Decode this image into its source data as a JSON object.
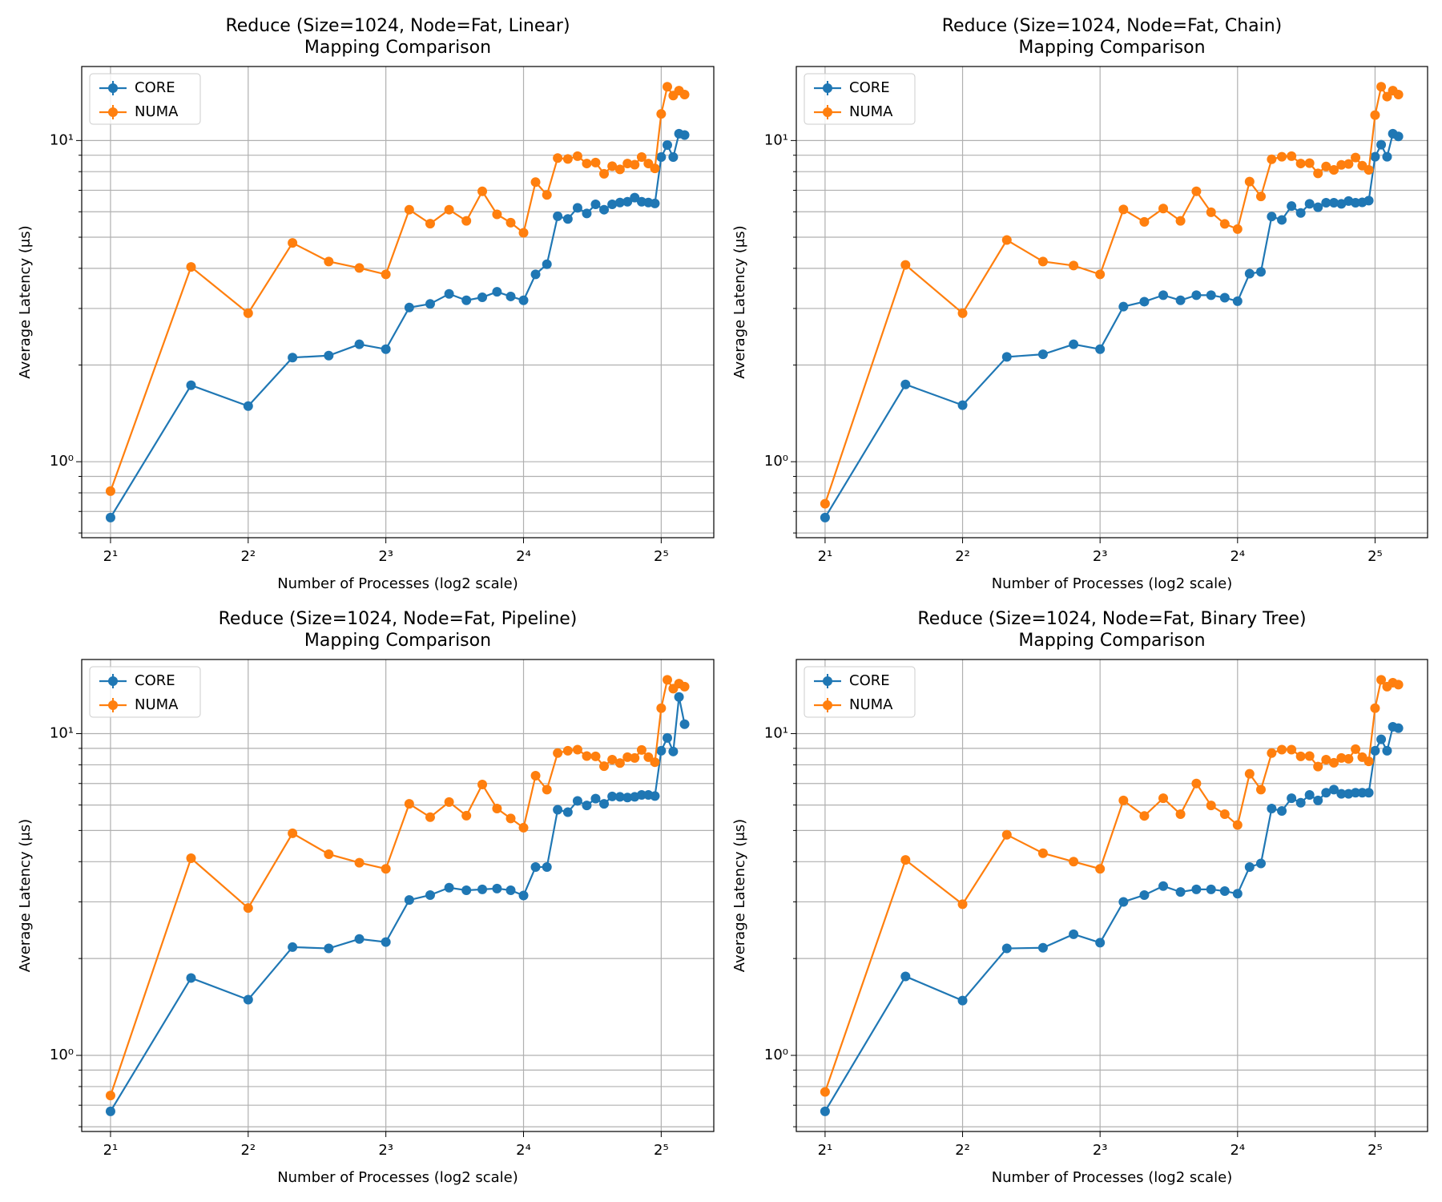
{
  "chart_data": [
    {
      "type": "line",
      "title": "Reduce (Size=1024, Node=Fat, Linear)",
      "subtitle": "Mapping Comparison",
      "x_label": "Number of Processes (log2 scale)",
      "y_label": "Average Latency (μs)",
      "x": [
        2,
        3,
        4,
        5,
        6,
        7,
        8,
        9,
        10,
        11,
        12,
        13,
        14,
        15,
        16,
        17,
        18,
        19,
        20,
        21,
        22,
        23,
        24,
        25,
        26,
        27,
        28,
        29,
        30,
        31,
        32,
        33,
        34,
        35,
        36
      ],
      "series": [
        {
          "name": "CORE",
          "color": "#1f77b4",
          "values": [
            0.67,
            1.73,
            1.49,
            2.11,
            2.14,
            2.32,
            2.24,
            3.02,
            3.1,
            3.33,
            3.18,
            3.25,
            3.38,
            3.27,
            3.18,
            3.83,
            4.12,
            5.81,
            5.7,
            6.17,
            5.93,
            6.33,
            6.09,
            6.33,
            6.41,
            6.45,
            6.64,
            6.45,
            6.41,
            6.37,
            8.88,
            9.68,
            8.88,
            10.5,
            10.4
          ]
        },
        {
          "name": "NUMA",
          "color": "#ff7f0e",
          "values": [
            0.81,
            4.04,
            2.9,
            4.8,
            4.2,
            4.01,
            3.83,
            6.09,
            5.51,
            6.09,
            5.62,
            6.95,
            5.89,
            5.55,
            5.16,
            7.42,
            6.77,
            8.82,
            8.76,
            8.94,
            8.48,
            8.54,
            7.88,
            8.32,
            8.13,
            8.48,
            8.41,
            8.88,
            8.48,
            8.19,
            12.1,
            14.7,
            13.8,
            14.3,
            13.9
          ]
        }
      ],
      "xscale": "log2",
      "yscale": "log10",
      "xlim": [
        1.73,
        41.7
      ],
      "ylim": [
        0.58,
        17
      ],
      "xticks": [
        {
          "value": 2,
          "label": "2¹"
        },
        {
          "value": 4,
          "label": "2²"
        },
        {
          "value": 8,
          "label": "2³"
        },
        {
          "value": 16,
          "label": "2⁴"
        },
        {
          "value": 32,
          "label": "2⁵"
        }
      ],
      "yticks": [
        {
          "value": 1,
          "label": "10⁰"
        },
        {
          "value": 10,
          "label": "10¹"
        }
      ],
      "yminorticks": [
        0.6,
        0.7,
        0.8,
        0.9,
        2,
        3,
        4,
        5,
        6,
        7,
        8,
        9
      ],
      "grid": true,
      "legend": "upper left"
    },
    {
      "type": "line",
      "title": "Reduce (Size=1024, Node=Fat, Chain)",
      "subtitle": "Mapping Comparison",
      "x_label": "Number of Processes (log2 scale)",
      "y_label": "Average Latency (μs)",
      "x": [
        2,
        3,
        4,
        5,
        6,
        7,
        8,
        9,
        10,
        11,
        12,
        13,
        14,
        15,
        16,
        17,
        18,
        19,
        20,
        21,
        22,
        23,
        24,
        25,
        26,
        27,
        28,
        29,
        30,
        31,
        32,
        33,
        34,
        35,
        36
      ],
      "series": [
        {
          "name": "CORE",
          "color": "#1f77b4",
          "values": [
            0.67,
            1.74,
            1.5,
            2.12,
            2.16,
            2.32,
            2.24,
            3.04,
            3.15,
            3.3,
            3.18,
            3.3,
            3.3,
            3.24,
            3.16,
            3.85,
            3.9,
            5.8,
            5.66,
            6.25,
            5.95,
            6.35,
            6.2,
            6.4,
            6.4,
            6.35,
            6.48,
            6.4,
            6.42,
            6.5,
            8.9,
            9.7,
            8.9,
            10.5,
            10.3
          ]
        },
        {
          "name": "NUMA",
          "color": "#ff7f0e",
          "values": [
            0.74,
            4.1,
            2.9,
            4.9,
            4.2,
            4.08,
            3.83,
            6.1,
            5.58,
            6.14,
            5.62,
            6.95,
            5.98,
            5.5,
            5.3,
            7.45,
            6.7,
            8.74,
            8.9,
            8.94,
            8.48,
            8.5,
            7.9,
            8.3,
            8.1,
            8.4,
            8.45,
            8.85,
            8.35,
            8.1,
            12.0,
            14.7,
            13.7,
            14.3,
            13.9
          ]
        }
      ],
      "xscale": "log2",
      "yscale": "log10",
      "xlim": [
        1.73,
        41.7
      ],
      "ylim": [
        0.58,
        17
      ],
      "xticks": [
        {
          "value": 2,
          "label": "2¹"
        },
        {
          "value": 4,
          "label": "2²"
        },
        {
          "value": 8,
          "label": "2³"
        },
        {
          "value": 16,
          "label": "2⁴"
        },
        {
          "value": 32,
          "label": "2⁵"
        }
      ],
      "yticks": [
        {
          "value": 1,
          "label": "10⁰"
        },
        {
          "value": 10,
          "label": "10¹"
        }
      ],
      "yminorticks": [
        0.6,
        0.7,
        0.8,
        0.9,
        2,
        3,
        4,
        5,
        6,
        7,
        8,
        9
      ],
      "grid": true,
      "legend": "upper left"
    },
    {
      "type": "line",
      "title": "Reduce (Size=1024, Node=Fat, Pipeline)",
      "subtitle": "Mapping Comparison",
      "x_label": "Number of Processes (log2 scale)",
      "y_label": "Average Latency (μs)",
      "x": [
        2,
        3,
        4,
        5,
        6,
        7,
        8,
        9,
        10,
        11,
        12,
        13,
        14,
        15,
        16,
        17,
        18,
        19,
        20,
        21,
        22,
        23,
        24,
        25,
        26,
        27,
        28,
        29,
        30,
        31,
        32,
        33,
        34,
        35,
        36
      ],
      "series": [
        {
          "name": "CORE",
          "color": "#1f77b4",
          "values": [
            0.67,
            1.74,
            1.49,
            2.17,
            2.15,
            2.3,
            2.25,
            3.04,
            3.15,
            3.32,
            3.26,
            3.28,
            3.3,
            3.26,
            3.14,
            3.85,
            3.85,
            5.8,
            5.7,
            6.18,
            5.98,
            6.28,
            6.05,
            6.38,
            6.36,
            6.33,
            6.36,
            6.45,
            6.45,
            6.4,
            8.85,
            9.7,
            8.8,
            13.0,
            10.7
          ]
        },
        {
          "name": "NUMA",
          "color": "#ff7f0e",
          "values": [
            0.75,
            4.1,
            2.87,
            4.9,
            4.22,
            3.97,
            3.8,
            6.05,
            5.5,
            6.13,
            5.56,
            6.95,
            5.85,
            5.45,
            5.1,
            7.4,
            6.7,
            8.7,
            8.85,
            8.92,
            8.52,
            8.5,
            7.92,
            8.3,
            8.1,
            8.45,
            8.4,
            8.9,
            8.45,
            8.15,
            12.0,
            14.7,
            13.8,
            14.3,
            14.0
          ]
        }
      ],
      "xscale": "log2",
      "yscale": "log10",
      "xlim": [
        1.73,
        41.7
      ],
      "ylim": [
        0.58,
        17
      ],
      "xticks": [
        {
          "value": 2,
          "label": "2¹"
        },
        {
          "value": 4,
          "label": "2²"
        },
        {
          "value": 8,
          "label": "2³"
        },
        {
          "value": 16,
          "label": "2⁴"
        },
        {
          "value": 32,
          "label": "2⁵"
        }
      ],
      "yticks": [
        {
          "value": 1,
          "label": "10⁰"
        },
        {
          "value": 10,
          "label": "10¹"
        }
      ],
      "yminorticks": [
        0.6,
        0.7,
        0.8,
        0.9,
        2,
        3,
        4,
        5,
        6,
        7,
        8,
        9
      ],
      "grid": true,
      "legend": "upper left"
    },
    {
      "type": "line",
      "title": "Reduce (Size=1024, Node=Fat, Binary Tree)",
      "subtitle": "Mapping Comparison",
      "x_label": "Number of Processes (log2 scale)",
      "y_label": "Average Latency (μs)",
      "x": [
        2,
        3,
        4,
        5,
        6,
        7,
        8,
        9,
        10,
        11,
        12,
        13,
        14,
        15,
        16,
        17,
        18,
        19,
        20,
        21,
        22,
        23,
        24,
        25,
        26,
        27,
        28,
        29,
        30,
        31,
        32,
        33,
        34,
        35,
        36
      ],
      "series": [
        {
          "name": "CORE",
          "color": "#1f77b4",
          "values": [
            0.67,
            1.76,
            1.48,
            2.15,
            2.16,
            2.38,
            2.24,
            3.0,
            3.15,
            3.36,
            3.22,
            3.28,
            3.28,
            3.24,
            3.18,
            3.85,
            3.95,
            5.85,
            5.75,
            6.3,
            6.1,
            6.45,
            6.2,
            6.55,
            6.7,
            6.5,
            6.5,
            6.55,
            6.55,
            6.55,
            8.85,
            9.6,
            8.85,
            10.5,
            10.4
          ]
        },
        {
          "name": "NUMA",
          "color": "#ff7f0e",
          "values": [
            0.77,
            4.05,
            2.95,
            4.85,
            4.25,
            4.0,
            3.8,
            6.2,
            5.55,
            6.3,
            5.62,
            7.0,
            5.98,
            5.62,
            5.2,
            7.5,
            6.7,
            8.7,
            8.92,
            8.92,
            8.5,
            8.52,
            7.9,
            8.3,
            8.12,
            8.4,
            8.35,
            8.95,
            8.45,
            8.2,
            12.0,
            14.7,
            14.0,
            14.4,
            14.2
          ]
        }
      ],
      "xscale": "log2",
      "yscale": "log10",
      "xlim": [
        1.73,
        41.7
      ],
      "ylim": [
        0.58,
        17
      ],
      "xticks": [
        {
          "value": 2,
          "label": "2¹"
        },
        {
          "value": 4,
          "label": "2²"
        },
        {
          "value": 8,
          "label": "2³"
        },
        {
          "value": 16,
          "label": "2⁴"
        },
        {
          "value": 32,
          "label": "2⁵"
        }
      ],
      "yticks": [
        {
          "value": 1,
          "label": "10⁰"
        },
        {
          "value": 10,
          "label": "10¹"
        }
      ],
      "yminorticks": [
        0.6,
        0.7,
        0.8,
        0.9,
        2,
        3,
        4,
        5,
        6,
        7,
        8,
        9
      ],
      "grid": true,
      "legend": "upper left"
    }
  ]
}
